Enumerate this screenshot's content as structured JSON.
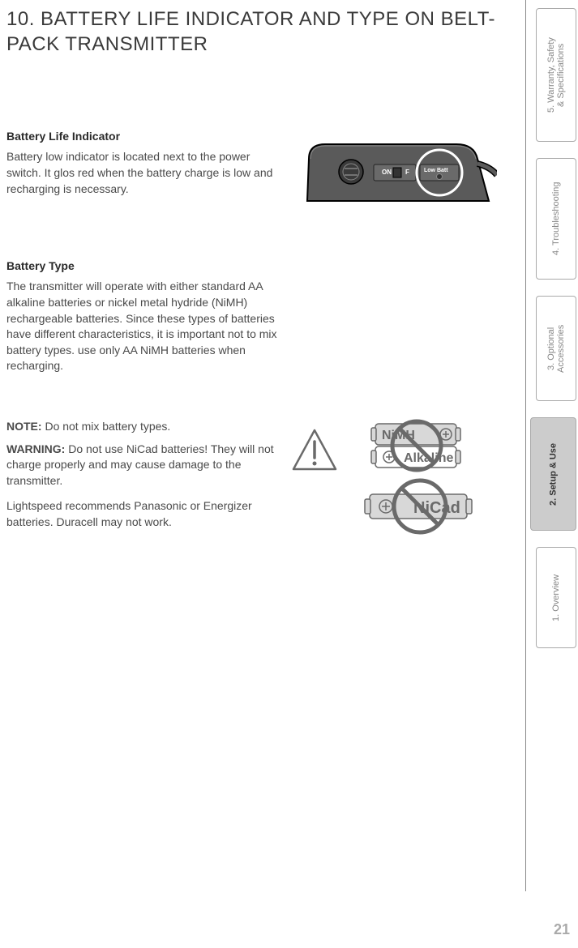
{
  "page": {
    "title": "10. BATTERY LIFE INDICATOR AND TYPE ON BELT-PACK TRANSMITTER",
    "number": "21"
  },
  "section1": {
    "heading": "Battery Life Indicator",
    "text": "Battery low indicator is located next to the power switch. It glos red when the battery charge is low and recharging is necessary."
  },
  "section2": {
    "heading": "Battery Type",
    "text": "The transmitter will operate with either standard AA alkaline batteries or nickel metal hydride (NiMH) rechargeable batteries. Since these types of batteries have different characteristics, it is important not to mix battery types. use only AA NiMH batteries when recharging."
  },
  "section3": {
    "note_label": "NOTE:",
    "note_text": " Do not mix battery types.",
    "warning_label": "WARNING:",
    "warning_text": " Do not use NiCad batteries! They will not charge properly and may cause damage to the transmitter.",
    "rec_text": "Lightspeed recommends Panasonic or Energizer batteries. Duracell may not work."
  },
  "device": {
    "on_label": "ON",
    "off_label": "F",
    "lowbatt_label": "Low Batt",
    "body_color": "#5a5a5a",
    "outline_color": "#000000",
    "highlight_color": "#ffffff"
  },
  "batteries": {
    "nimh_label": "NiMH",
    "alkaline_label": "Alkaline",
    "nicad_label": "NiCad",
    "battery_fill": "#d8d8d8",
    "battery_stroke": "#6a6a6a",
    "label_color": "#6a6a6a",
    "prohibit_color": "#6a6a6a"
  },
  "tabs": {
    "t5": "5. Warranty, Safety\n& Specifications",
    "t4": "4. Troubleshooting",
    "t3": "3. Optional\nAccessories",
    "t2": "2. Setup & Use",
    "t1": "1. Overview"
  },
  "colors": {
    "text": "#3a3a3a",
    "body_text": "#4a4a4a",
    "tab_border": "#aaaaaa",
    "tab_inactive_text": "#888888",
    "tab_active_bg": "#cccccc",
    "divider": "#888888",
    "pagenum": "#aaaaaa"
  }
}
